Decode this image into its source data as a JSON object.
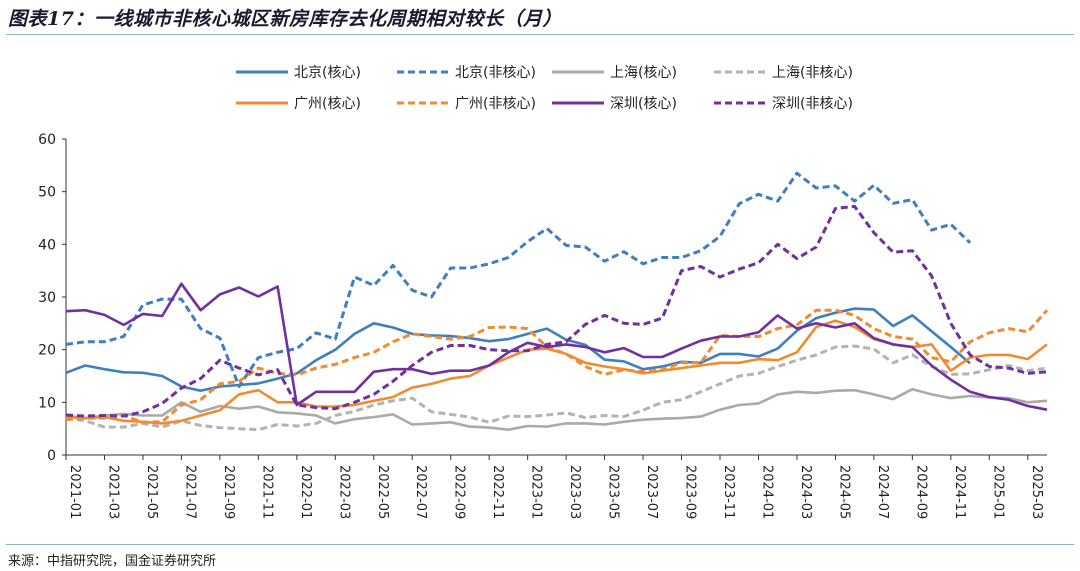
{
  "header": {
    "title": "图表17：一线城市非核心城区新房库存去化周期相对较长（月）"
  },
  "footer": {
    "source": "来源：中指研究院，国金证券研究所"
  },
  "chart_data": {
    "type": "line",
    "title": "",
    "xlabel": "",
    "ylabel": "",
    "ylim": [
      0,
      60
    ],
    "yticks": [
      0,
      10,
      20,
      30,
      40,
      50,
      60
    ],
    "grid": false,
    "legend_position": "top",
    "x": [
      "2021-01",
      "2021-02",
      "2021-03",
      "2021-04",
      "2021-05",
      "2021-06",
      "2021-07",
      "2021-08",
      "2021-09",
      "2021-10",
      "2021-11",
      "2021-12",
      "2022-01",
      "2022-02",
      "2022-03",
      "2022-04",
      "2022-05",
      "2022-06",
      "2022-07",
      "2022-08",
      "2022-09",
      "2022-10",
      "2022-11",
      "2022-12",
      "2023-01",
      "2023-02",
      "2023-03",
      "2023-04",
      "2023-05",
      "2023-06",
      "2023-07",
      "2023-08",
      "2023-09",
      "2023-10",
      "2023-11",
      "2023-12",
      "2024-01",
      "2024-02",
      "2024-03",
      "2024-04",
      "2024-05",
      "2024-06",
      "2024-07",
      "2024-08",
      "2024-09",
      "2024-10",
      "2024-11",
      "2024-12",
      "2025-01",
      "2025-02",
      "2025-03",
      "2025-04"
    ],
    "xtick_labels": [
      "2021-01",
      "2021-03",
      "2021-05",
      "2021-07",
      "2021-09",
      "2021-11",
      "2022-01",
      "2022-03",
      "2022-05",
      "2022-07",
      "2022-09",
      "2022-11",
      "2023-01",
      "2023-03",
      "2023-05",
      "2023-07",
      "2023-09",
      "2023-11",
      "2024-01",
      "2024-03",
      "2024-05",
      "2024-07",
      "2024-09",
      "2024-11",
      "2025-01",
      "2025-03"
    ],
    "series": [
      {
        "name": "北京(核心)",
        "color": "#3f7fbf",
        "dash": "solid",
        "values": [
          15.6,
          17,
          16.3,
          15.7,
          15.6,
          15,
          13,
          12.2,
          13,
          13.3,
          13.6,
          14.5,
          15.5,
          18,
          20,
          23,
          25,
          24.2,
          23,
          22.7,
          22.6,
          22.2,
          21.6,
          22,
          23,
          24,
          21.9,
          20.9,
          18.1,
          17.8,
          16.3,
          16.8,
          17.7,
          17.5,
          19.2,
          19.2,
          18.7,
          20.2,
          23.6,
          26,
          27,
          27.8,
          27.6,
          24.5,
          26.5,
          23.5,
          20.5,
          17.4,
          null,
          null,
          null,
          null
        ]
      },
      {
        "name": "北京(非核心)",
        "color": "#3f7fbf",
        "dash": "dashed",
        "values": [
          21,
          21.5,
          21.5,
          22.5,
          28.5,
          29.6,
          29.6,
          24,
          22.2,
          13,
          18.5,
          19.5,
          20.2,
          23.2,
          22,
          33.8,
          32.2,
          36,
          31.3,
          30,
          35.5,
          35.5,
          36.3,
          37.5,
          40.5,
          43,
          39.8,
          39.5,
          36.8,
          38.6,
          36.3,
          37.5,
          37.5,
          38.8,
          41.5,
          47.7,
          49.5,
          48.2,
          53.5,
          50.7,
          51.1,
          48.2,
          51.2,
          47.8,
          48.5,
          42.7,
          43.8,
          40.3,
          null,
          null,
          null,
          null
        ]
      },
      {
        "name": "上海(核心)",
        "color": "#aaaaaa",
        "dash": "solid",
        "values": [
          7.5,
          7,
          7.5,
          7.8,
          7.5,
          7.5,
          10,
          8.2,
          9.3,
          8.8,
          9.2,
          8.1,
          7.9,
          7.5,
          6,
          6.8,
          7.2,
          7.7,
          5.8,
          6,
          6.2,
          5.4,
          5.2,
          4.8,
          5.5,
          5.4,
          6,
          6,
          5.8,
          6.3,
          6.7,
          6.9,
          7,
          7.3,
          8.6,
          9.5,
          9.8,
          11.5,
          12,
          11.8,
          12.2,
          12.3,
          11.5,
          10.6,
          12.5,
          11.5,
          10.8,
          11.2,
          10.9,
          10.8,
          10,
          10.3
        ]
      },
      {
        "name": "上海(非核心)",
        "color": "#b3b3b3",
        "dash": "dashed",
        "values": [
          7,
          6.5,
          5.3,
          5.3,
          6,
          5.3,
          6.5,
          5.6,
          5.2,
          5,
          4.8,
          5.8,
          5.5,
          6,
          7.5,
          8.3,
          9.5,
          10.3,
          10.8,
          8.2,
          7.7,
          7.2,
          6.2,
          7.4,
          7.3,
          7.6,
          8,
          7.1,
          7.5,
          7.3,
          8.5,
          10,
          10.5,
          12,
          13.5,
          15,
          15.5,
          16.8,
          18,
          19,
          20.5,
          20.7,
          20.1,
          17.5,
          19,
          16.8,
          15.3,
          15.4,
          16.2,
          17,
          16,
          16.5
        ]
      },
      {
        "name": "广州(核心)",
        "color": "#f28a30",
        "dash": "solid",
        "values": [
          7.2,
          7,
          7.2,
          6.5,
          6.3,
          6,
          6.5,
          7.5,
          8.5,
          11.5,
          12.3,
          10,
          10,
          9.2,
          9.2,
          9.5,
          10.3,
          11,
          12.8,
          13.5,
          14.5,
          15,
          17,
          18.5,
          20,
          20.2,
          19.2,
          17.5,
          16.8,
          16.3,
          15.5,
          16,
          16.5,
          17,
          17.5,
          17.5,
          18.2,
          18,
          19.5,
          24.3,
          25.5,
          24.3,
          22,
          21,
          20.5,
          21,
          16,
          18.5,
          19,
          19,
          18.2,
          21
        ]
      },
      {
        "name": "广州(非核心)",
        "color": "#f28a30",
        "dash": "dashed",
        "values": [
          6.7,
          7,
          7,
          7.5,
          6.2,
          6.3,
          9.5,
          10.5,
          13.5,
          14,
          16.5,
          15.5,
          15.2,
          16.5,
          17.2,
          18.5,
          19.5,
          21.5,
          23,
          22.5,
          22,
          22.5,
          24.2,
          24.3,
          24,
          20.5,
          19.2,
          16.8,
          15.3,
          16.2,
          15.8,
          16.2,
          17.5,
          17.5,
          22.7,
          22.5,
          22.5,
          24,
          24.7,
          27.5,
          27.5,
          26.5,
          24,
          22.5,
          22,
          18.5,
          17.7,
          21.5,
          23.2,
          24,
          23.4,
          27.5
        ]
      },
      {
        "name": "深圳(核心)",
        "color": "#7030a0",
        "dash": "solid",
        "values": [
          27.3,
          27.5,
          26.6,
          24.7,
          26.8,
          26.4,
          32.5,
          27.5,
          30.5,
          31.8,
          30.1,
          32,
          9.5,
          12,
          12,
          12,
          15.8,
          16.3,
          16.3,
          15.4,
          16,
          16,
          17,
          19.5,
          21.3,
          20.5,
          21,
          20.5,
          19.5,
          20.3,
          18.6,
          18.6,
          20.2,
          21.7,
          22.5,
          22.5,
          23.3,
          26.5,
          24,
          25,
          24.2,
          25,
          22.2,
          21,
          20.5,
          17,
          14.3,
          12,
          11,
          10.5,
          9.3,
          8.6
        ]
      },
      {
        "name": "深圳(非核心)",
        "color": "#7030a0",
        "dash": "dashed",
        "values": [
          7.6,
          7.4,
          7.5,
          7.4,
          8.2,
          9.8,
          12.7,
          14.5,
          18,
          16.5,
          15.2,
          16.2,
          9.5,
          9,
          8.8,
          10,
          11.5,
          14,
          17,
          19.5,
          20.8,
          20.8,
          20,
          19.8,
          19.8,
          21,
          21.5,
          24.8,
          26.5,
          25,
          24.8,
          26,
          35,
          35.8,
          33.8,
          35.3,
          36.5,
          40,
          37.3,
          39.5,
          46.8,
          47.2,
          42.2,
          38.5,
          38.8,
          34,
          25,
          19,
          16.8,
          16.5,
          15.5,
          15.8
        ]
      }
    ]
  }
}
